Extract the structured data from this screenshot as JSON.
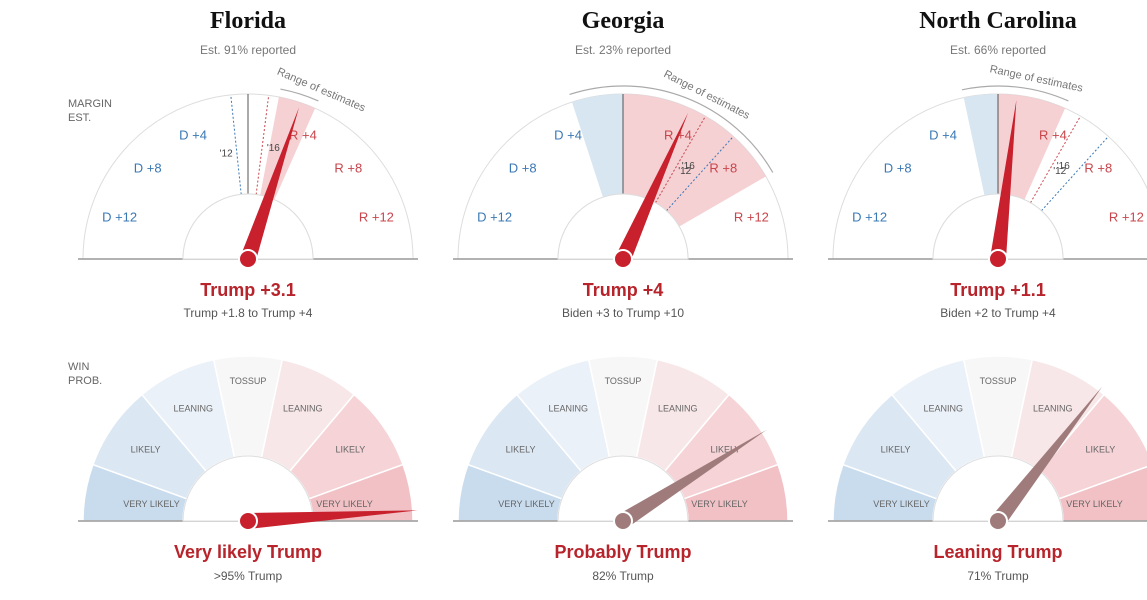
{
  "side_labels": {
    "margin": [
      "MARGIN",
      "EST."
    ],
    "win": [
      "WIN",
      "PROB."
    ]
  },
  "gauge_labels": {
    "margin_ticks": [
      "D +12",
      "D +8",
      "D +4",
      "R +4",
      "R +8",
      "R +12"
    ],
    "range_label": "Range of estimates",
    "prob_bands": [
      "VERY LIKELY",
      "LIKELY",
      "LEANING",
      "TOSSUP",
      "LEANING",
      "LIKELY",
      "VERY LIKELY"
    ]
  },
  "colors": {
    "trump_red": "#b7242b",
    "needle_red": "#c8202c",
    "needle_muted": "#a07b7b",
    "dem_blue": "#3a78b5",
    "rep_red": "#c8454b"
  },
  "states": [
    {
      "name": "Florida",
      "reported": "Est. 91% reported",
      "margin_headline": "Trump +3.1",
      "margin_range": "Trump +1.8 to Trump +4",
      "margin_value": 3.1,
      "range_low": 1.8,
      "range_high": 4,
      "prob_headline": "Very likely Trump",
      "prob_detail": ">95% Trump",
      "win_prob": 0.98,
      "history_12": "'12",
      "history_16": "'16"
    },
    {
      "name": "Georgia",
      "reported": "Est. 23% reported",
      "margin_headline": "Trump +4",
      "margin_range": "Biden +3 to Trump +10",
      "margin_value": 4,
      "range_low": -3,
      "range_high": 10,
      "prob_headline": "Probably Trump",
      "prob_detail": "82% Trump",
      "win_prob": 0.82,
      "history_12": "'12",
      "history_16": "'16"
    },
    {
      "name": "North Carolina",
      "reported": "Est. 66% reported",
      "margin_headline": "Trump +1.1",
      "margin_range": "Biden +2 to Trump +4",
      "margin_value": 1.1,
      "range_low": -2,
      "range_high": 4,
      "prob_headline": "Leaning Trump",
      "prob_detail": "71% Trump",
      "win_prob": 0.71,
      "history_12": "'12",
      "history_16": "'16"
    }
  ]
}
